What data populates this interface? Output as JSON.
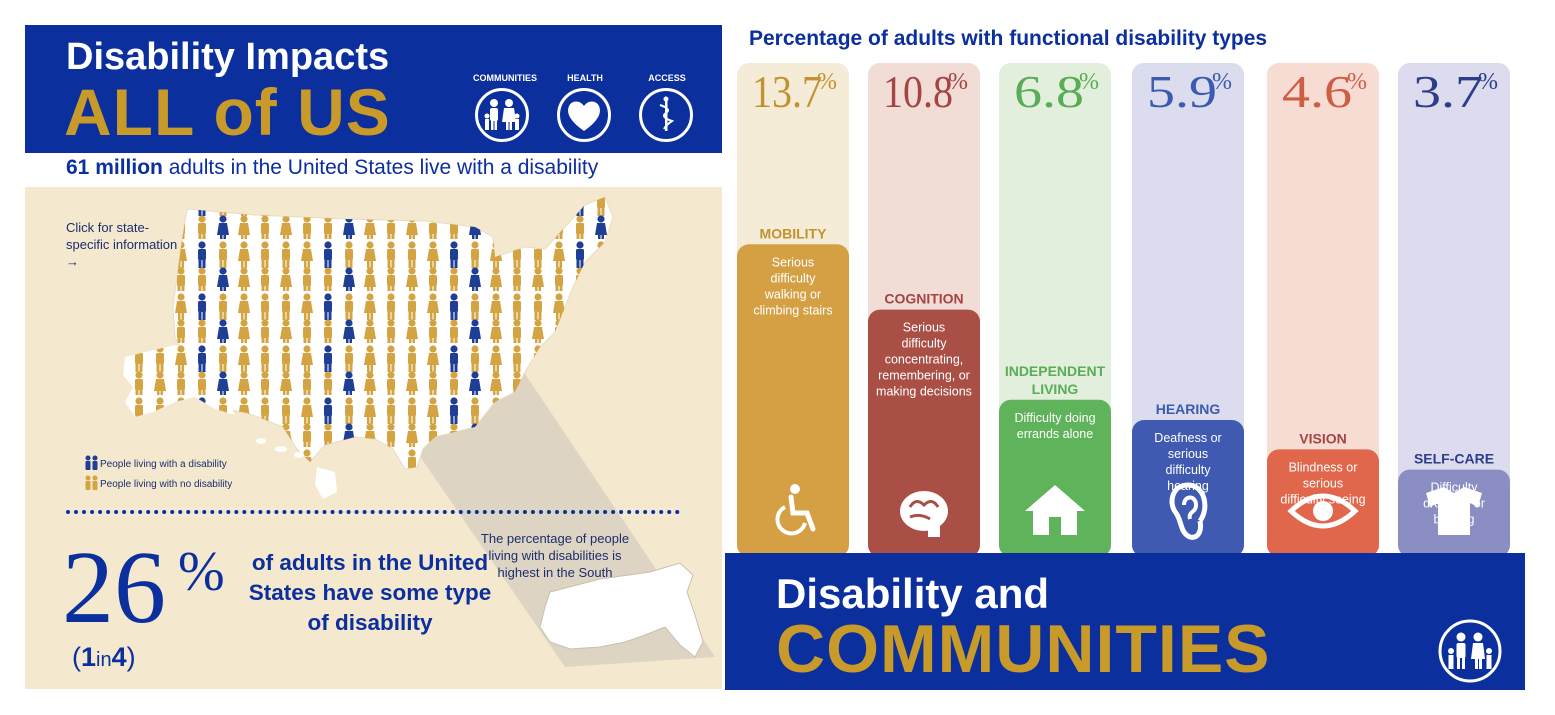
{
  "left": {
    "title_line1": "Disability Impacts",
    "title_line2": "ALL of US",
    "header_icons": [
      {
        "label": "COMMUNITIES",
        "icon": "family-icon"
      },
      {
        "label": "HEALTH",
        "icon": "heart-icon"
      },
      {
        "label": "ACCESS",
        "icon": "caduceus-icon"
      }
    ],
    "stat_bold": "61 million",
    "stat_rest": " adults in the United States live with a disability",
    "click_text": "Click for state-specific information →",
    "legend": [
      {
        "label": "People living with a disability",
        "color": "#1f3f94"
      },
      {
        "label": "People living with no disability",
        "color": "#d4a443"
      }
    ],
    "big_percent_number": "26",
    "big_percent_sign": "%",
    "one_in": "1",
    "in_word": "in",
    "four": "4",
    "adults_text": "of adults in the United States have some type of disability",
    "south_text": "The percentage of people living with disabilities is highest in the South"
  },
  "chart_data": {
    "type": "bar",
    "title": "Percentage of adults with functional disability types",
    "categories": [
      "MOBILITY",
      "COGNITION",
      "INDEPENDENT LIVING",
      "HEARING",
      "VISION",
      "SELF-CARE"
    ],
    "values": [
      13.7,
      10.8,
      6.8,
      5.9,
      4.6,
      3.7
    ],
    "value_labels": [
      "13.7",
      "10.8",
      "6.8",
      "5.9",
      "4.6",
      "3.7"
    ],
    "unit": "%",
    "descriptions": [
      "Serious difficulty walking or climbing stairs",
      "Serious difficulty concentrating, remembering, or making decisions",
      "Difficulty doing errands alone",
      "Deafness or serious difficulty hearing",
      "Blindness or serious difficulty seeing",
      "Difficulty dressing or bathing"
    ],
    "colors": [
      "#d4a043",
      "#a94f46",
      "#5fb35a",
      "#3f5ab0",
      "#e0674c",
      "#8b8ec3"
    ],
    "bg_colors": [
      "#f4ecd6",
      "#f2dcd6",
      "#e1efdc",
      "#dcdcef",
      "#f6dcd3",
      "#dcdcee"
    ],
    "value_colors": [
      "#c39230",
      "#a44543",
      "#59ad56",
      "#3b5ab0",
      "#cf5d44",
      "#2d3d8a"
    ],
    "label_colors": [
      "#c39230",
      "#a44543",
      "#59ad56",
      "#3b5ab0",
      "#a44543",
      "#2d3d8a"
    ],
    "icons": [
      "wheelchair-icon",
      "brain-icon",
      "house-icon",
      "ear-icon",
      "eye-icon",
      "shirt-icon"
    ],
    "ylim": [
      0,
      15
    ]
  },
  "bottom": {
    "line1": "Disability and",
    "line2": "COMMUNITIES",
    "icon": "family-icon"
  }
}
